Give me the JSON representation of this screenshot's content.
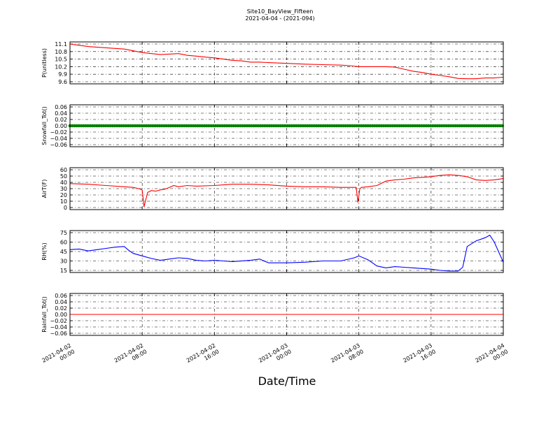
{
  "chart_data": {
    "type": "line",
    "title": "Site10_BayView_Fifteen",
    "subtitle": "2021-04-04 - (2021-094)",
    "xlabel": "Date/Time",
    "x_ticks": [
      {
        "t": 0,
        "line1": "2021-04-02",
        "line2": "00:00"
      },
      {
        "t": 8,
        "line1": "2021-04-02",
        "line2": "08:00"
      },
      {
        "t": 16,
        "line1": "2021-04-02",
        "line2": "16:00"
      },
      {
        "t": 24,
        "line1": "2021-04-03",
        "line2": "00:00"
      },
      {
        "t": 32,
        "line1": "2021-04-03",
        "line2": "08:00"
      },
      {
        "t": 40,
        "line1": "2021-04-03",
        "line2": "16:00"
      },
      {
        "t": 48,
        "line1": "2021-04-04",
        "line2": "00:00"
      }
    ],
    "xlim": [
      0,
      48
    ],
    "panels": [
      {
        "ylabel": "P(unitless)",
        "ylim": [
          9.6,
          11.15
        ],
        "yticks": [
          "11.1",
          "10.8",
          "10.5",
          "10.2",
          "9.9",
          "9.6"
        ],
        "color": "#ff0000",
        "x": [
          0,
          1,
          2,
          4,
          6,
          7,
          8,
          9,
          10,
          11,
          12,
          13,
          14,
          15,
          16,
          17,
          18,
          19,
          20,
          21,
          22,
          24,
          26,
          28,
          30,
          31,
          32,
          34,
          35,
          36,
          37,
          38,
          39,
          40,
          41,
          42,
          43,
          44,
          45,
          46,
          47,
          48
        ],
        "y": [
          11.1,
          11.05,
          11.0,
          10.95,
          10.9,
          10.83,
          10.76,
          10.72,
          10.68,
          10.7,
          10.72,
          10.65,
          10.62,
          10.58,
          10.55,
          10.5,
          10.45,
          10.43,
          10.38,
          10.38,
          10.36,
          10.33,
          10.3,
          10.28,
          10.26,
          10.24,
          10.2,
          10.2,
          10.2,
          10.18,
          10.1,
          10.02,
          9.97,
          9.9,
          9.85,
          9.8,
          9.73,
          9.72,
          9.72,
          9.75,
          9.75,
          9.78
        ]
      },
      {
        "ylabel": "Snowfall_Tot()",
        "ylim": [
          -0.06,
          0.06
        ],
        "yticks": [
          "0.06",
          "0.04",
          "0.02",
          "0.00",
          "−0.02",
          "−0.04",
          "−0.06"
        ],
        "color": "#008000",
        "markers": true,
        "x": [
          0,
          48
        ],
        "y": [
          0,
          0
        ]
      },
      {
        "ylabel": "AirT(F)",
        "ylim": [
          0,
          60
        ],
        "yticks": [
          "60",
          "50",
          "40",
          "30",
          "20",
          "10",
          "0"
        ],
        "color": "#ff0000",
        "x": [
          0,
          2,
          4,
          6,
          7,
          7.6,
          7.8,
          8,
          8.2,
          8.6,
          9,
          9.5,
          10,
          10.5,
          11,
          11.5,
          12,
          13,
          14,
          16,
          17,
          18,
          20,
          22,
          24,
          26,
          28,
          30,
          31.7,
          31.9,
          32.1,
          32.3,
          33,
          34,
          35,
          36,
          37,
          38,
          39,
          40,
          41,
          42,
          43,
          44,
          45,
          46,
          47,
          48
        ],
        "y": [
          38,
          37,
          35,
          33,
          32,
          30,
          29,
          28,
          1,
          24,
          27,
          26,
          28,
          29,
          32,
          35,
          33,
          35,
          34,
          35,
          36,
          37,
          37,
          36,
          34,
          33,
          33,
          32,
          32,
          8,
          30,
          32,
          33,
          35,
          42,
          44,
          45,
          47,
          48,
          49,
          51,
          52,
          51,
          49,
          44,
          43,
          44,
          46
        ]
      },
      {
        "ylabel": "RH(%)",
        "ylim": [
          10,
          77
        ],
        "yticks": [
          "75",
          "60",
          "45",
          "30",
          "15"
        ],
        "color": "#0000ff",
        "x": [
          0,
          1,
          2,
          3,
          4,
          5,
          6,
          6.5,
          7,
          8,
          9,
          10,
          11,
          12,
          13,
          14,
          15,
          16,
          17,
          18,
          20,
          21,
          22,
          24,
          26,
          28,
          30,
          31.5,
          32,
          33,
          34,
          35,
          36,
          37,
          38,
          39,
          40,
          41,
          42,
          43,
          43.5,
          44,
          45,
          46,
          46.5,
          47,
          48
        ],
        "y": [
          48,
          49,
          46,
          48,
          50,
          52,
          53,
          47,
          42,
          38,
          34,
          31,
          33,
          35,
          34,
          31,
          30,
          31,
          30,
          29,
          31,
          33,
          27,
          27,
          28,
          30,
          30,
          35,
          38,
          32,
          22,
          19,
          21,
          20,
          19,
          18,
          17,
          15,
          14,
          14,
          20,
          53,
          62,
          67,
          71,
          60,
          28
        ]
      },
      {
        "ylabel": "Rainfall_Tot()",
        "ylim": [
          -0.06,
          0.06
        ],
        "yticks": [
          "0.06",
          "0.04",
          "0.02",
          "0.00",
          "−0.02",
          "−0.04",
          "−0.06"
        ],
        "color": "#ff0000",
        "x": [
          0,
          48
        ],
        "y": [
          0,
          0
        ]
      }
    ]
  }
}
